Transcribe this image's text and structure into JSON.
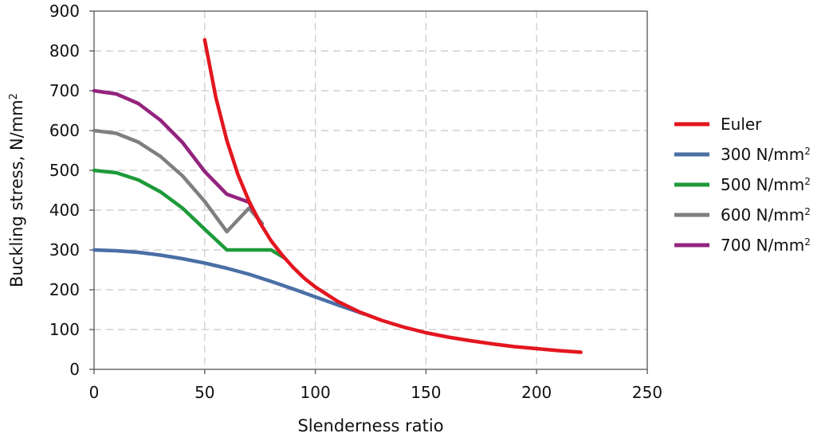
{
  "chart_data": {
    "type": "line",
    "title": "",
    "xlabel": "Slenderness ratio",
    "ylabel": "Buckling stress, N/mm",
    "ylabel_superscript": "2",
    "xlim": [
      0,
      250
    ],
    "ylim": [
      0,
      900
    ],
    "xticks": [
      0,
      50,
      100,
      150,
      200,
      250
    ],
    "yticks": [
      0,
      100,
      200,
      300,
      400,
      500,
      600,
      700,
      800,
      900
    ],
    "grid": true,
    "legend_position": "right",
    "series": [
      {
        "name": "Euler",
        "color": "#e3161f",
        "x": [
          50,
          55,
          60,
          65,
          70,
          75,
          80,
          85,
          90,
          95,
          100,
          110,
          120,
          130,
          140,
          150,
          160,
          170,
          180,
          190,
          200,
          210,
          220
        ],
        "y": [
          828,
          684,
          575,
          490,
          423,
          368,
          323,
          287,
          256,
          229,
          207,
          171,
          144,
          123,
          106,
          92,
          81,
          72,
          64,
          57,
          52,
          47,
          43
        ]
      },
      {
        "name": "300 N/mm",
        "sup": "2",
        "color": "#4a6fa5",
        "x": [
          0,
          10,
          20,
          30,
          40,
          50,
          60,
          70,
          80,
          90,
          100,
          110,
          122
        ],
        "y": [
          300,
          298,
          294,
          287,
          278,
          267,
          254,
          239,
          221,
          202,
          182,
          162,
          139
        ]
      },
      {
        "name": "500 N/mm",
        "sup": "2",
        "color": "#1d9a3a",
        "x": [
          0,
          10,
          20,
          30,
          40,
          50,
          60,
          70,
          80,
          86
        ],
        "y": [
          500,
          494,
          476,
          446,
          405,
          352,
          300,
          300,
          300,
          280
        ]
      },
      {
        "name": "600 N/mm",
        "sup": "2",
        "color": "#7f7f7f",
        "x": [
          0,
          10,
          20,
          30,
          40,
          50,
          60,
          70,
          76
        ],
        "y": [
          600,
          593,
          571,
          535,
          486,
          422,
          346,
          405,
          366
        ]
      },
      {
        "name": "700 N/mm",
        "sup": "2",
        "color": "#93247e",
        "x": [
          0,
          10,
          20,
          30,
          40,
          50,
          60,
          70,
          74
        ],
        "y": [
          700,
          692,
          668,
          626,
          570,
          497,
          440,
          420,
          380
        ]
      }
    ]
  }
}
